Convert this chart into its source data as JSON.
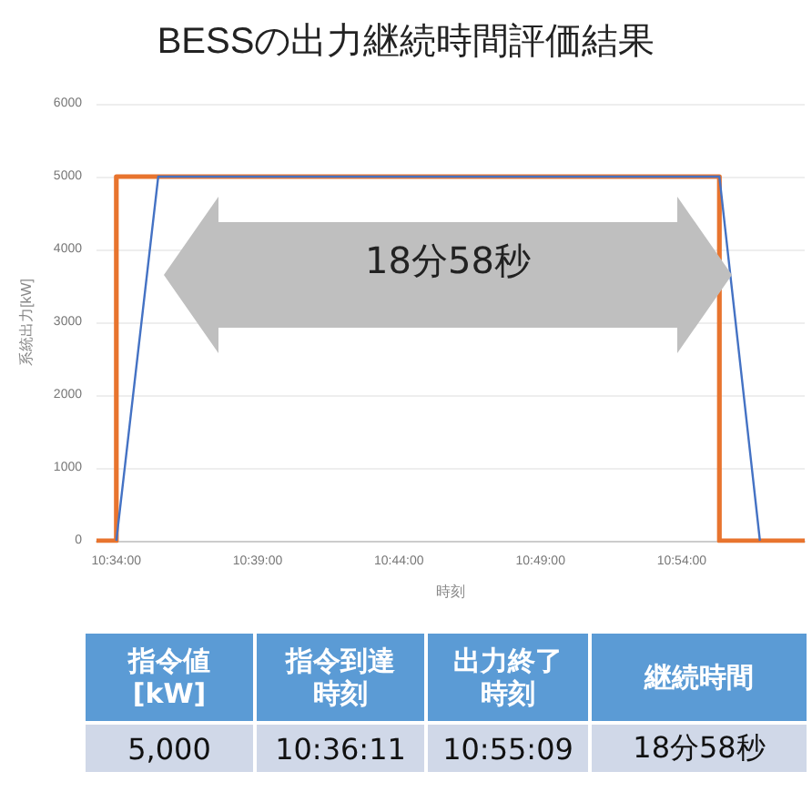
{
  "chart_data": [
    {
      "type": "line",
      "title": "BESSの出力継続時間評価結果",
      "xlabel": "時刻",
      "ylabel": "系統出力[kW]",
      "annotations": [
        "18分58秒"
      ],
      "xlim": [
        10.555,
        10.9725
      ],
      "xticks": [
        {
          "value": 10.5667,
          "label": "10:34:00"
        },
        {
          "value": 10.65,
          "label": "10:39:00"
        },
        {
          "value": 10.7333,
          "label": "10:44:00"
        },
        {
          "value": 10.8167,
          "label": "10:49:00"
        },
        {
          "value": 10.9,
          "label": "10:54:00"
        }
      ],
      "ylim": [
        0,
        6000
      ],
      "yticks": [
        0,
        1000,
        2000,
        3000,
        4000,
        5000,
        6000
      ],
      "grid": "y",
      "marker": "none",
      "line_style": "solid",
      "series": [
        {
          "color": "#e8742e",
          "x": [
            10.555,
            10.5667,
            10.5667,
            10.9222,
            10.9222,
            10.9725
          ],
          "values": [
            0,
            0,
            5000,
            5000,
            0,
            0
          ]
        },
        {
          "color": "#4472c4",
          "x": [
            10.5667,
            10.5914,
            10.9222,
            10.9461
          ],
          "values": [
            0,
            5000,
            5000,
            0
          ]
        }
      ]
    },
    {
      "type": "other",
      "categories": [
        "指令値\n[kW]",
        "指令到達時刻",
        "出力終了時刻",
        "継続時間"
      ],
      "annotations": [
        "5,000",
        "10:36:11",
        "10:55:09",
        "18分58秒"
      ]
    }
  ]
}
